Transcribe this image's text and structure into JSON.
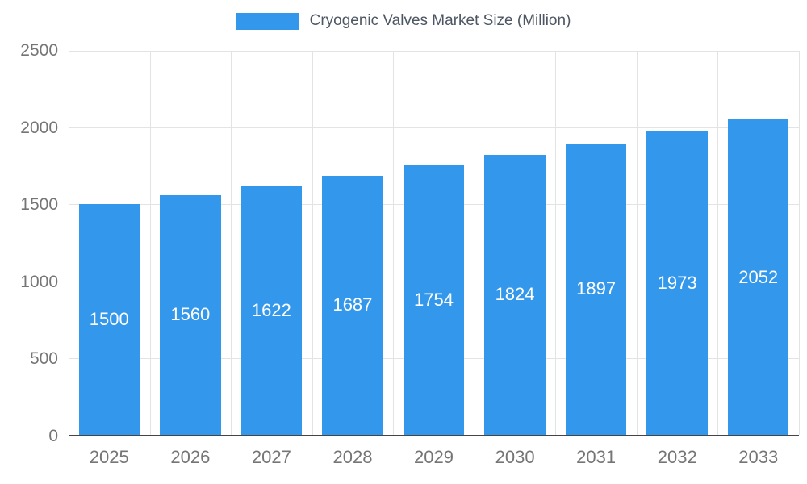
{
  "legend": {
    "label": "Cryogenic Valves Market Size (Million)"
  },
  "chart_data": {
    "type": "bar",
    "title": "Cryogenic Valves Market Size (Million)",
    "categories": [
      "2025",
      "2026",
      "2027",
      "2028",
      "2029",
      "2030",
      "2031",
      "2032",
      "2033"
    ],
    "values": [
      1500,
      1560,
      1622,
      1687,
      1754,
      1824,
      1897,
      1973,
      2052
    ],
    "xlabel": "",
    "ylabel": "",
    "ylim": [
      0,
      2500
    ],
    "yticks": [
      0,
      500,
      1000,
      1500,
      2000,
      2500
    ],
    "grid": true,
    "legend_position": "top",
    "value_labels": "inside-center",
    "colors": {
      "bar": "#3398EC",
      "value_label": "#FFFFFF",
      "tick_label": "#757575",
      "legend_text": "#4D5663",
      "gridline": "#E3E3E3",
      "baseline": "#454545",
      "background": "#FFFFFF"
    }
  }
}
